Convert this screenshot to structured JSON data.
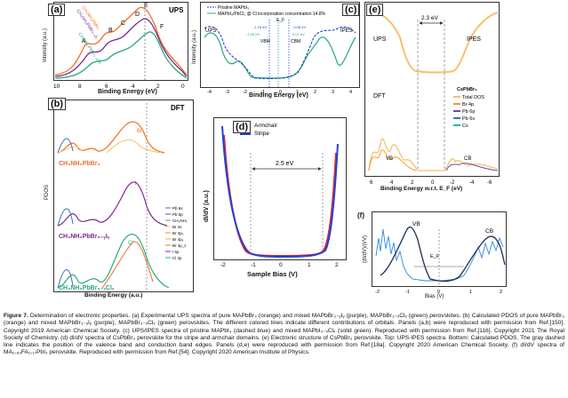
{
  "panel_a": {
    "label": "(a)",
    "tag": "UPS",
    "ylabel": "Intensity (a.u.)",
    "xlabel": "Binding Energy (eV)",
    "xticks": [
      "10",
      "8",
      "6",
      "4",
      "2",
      "0"
    ],
    "peaks": [
      "A",
      "B",
      "C",
      "D",
      "E",
      "F"
    ],
    "series": [
      {
        "name": "CH₃NH₃PbBr₃",
        "color": "#f26d21"
      },
      {
        "name": "CH₃NH₃PbBr₃₋ᵧIᵧ",
        "color": "#7a2a8f"
      },
      {
        "name": "CH₃NH₃PbBr₃₋ₓClₓ",
        "color": "#2aa879"
      }
    ]
  },
  "panel_b": {
    "label": "(b)",
    "tag": "DFT",
    "ylabel": "PDOS",
    "xlabel": "Binding Energy (a.u.)",
    "series_labels": [
      "CH₃NH₃PbBr₃",
      "CH₃NH₃PbBr₃₋ᵧIᵧ",
      "CH₃NH₃PbBr₃₋ₓClₓ"
    ],
    "legend": [
      "Pb 6s",
      "Pb 6p",
      "CH₃NH₃",
      "Br 4s",
      "Br 4pₓ",
      "Br 4pᵧ",
      "Br 4p_z",
      "I 5p",
      "Cl 3p"
    ],
    "annotations": [
      "Br",
      "I",
      "Cl"
    ]
  },
  "panel_c": {
    "label": "(c)",
    "xlabel": "Binding Energy (eV)",
    "ylabel": "Intensity (a.u.)",
    "legend": [
      "Pristine MAPbI₃",
      "MAPbI₃/PbCl₂ @ Cl incorporation concentration 14.8%"
    ],
    "tags": [
      "UPS",
      "IPES",
      "VBM",
      "CBM",
      "E_F"
    ],
    "values": [
      "-1.16 eV",
      "-1.55 eV",
      "-0.08 eV",
      "0.07 eV"
    ],
    "xticks": [
      "-4",
      "-3",
      "-2",
      "-1",
      "0",
      "1",
      "2",
      "3",
      "4"
    ]
  },
  "panel_d": {
    "label": "(d)",
    "xlabel": "Sample Bias (V)",
    "ylabel": "dI/dV (a.u.)",
    "legend": [
      {
        "name": "Armchair",
        "color": "#e3262b"
      },
      {
        "name": "Stripe",
        "color": "#2342d8"
      }
    ],
    "gap_label": "2.5 eV",
    "xticks": [
      "-2",
      "-1",
      "0",
      "1",
      "2"
    ]
  },
  "panel_e": {
    "label": "(e)",
    "gap_label": "2.3 eV",
    "tags": [
      "UPS",
      "IPES",
      "DFT",
      "VB",
      "CB"
    ],
    "legend_title": "CsPbBr₃",
    "legend": [
      {
        "name": "Total DOS",
        "color": "#f3c36b"
      },
      {
        "name": "Br 4p",
        "color": "#f29b2e"
      },
      {
        "name": "Pb 6p",
        "color": "#6c4aa0"
      },
      {
        "name": "Pb 6s",
        "color": "#3d6fb8"
      },
      {
        "name": "Cs",
        "color": "#2db3a3"
      }
    ],
    "xlabel": "Binding Energy w.r.t. E_F (eV)",
    "xticks": [
      "6",
      "4",
      "2",
      "0",
      "-2",
      "-4",
      "-6"
    ]
  },
  "panel_f": {
    "label": "(f)",
    "ylabel": "(dI/dV)/(I/V)",
    "xlabel": "Bias (V)",
    "tags": [
      "VB",
      "CB",
      "E_F"
    ],
    "xticks": [
      "-2",
      "-1",
      "0",
      "1",
      "2"
    ]
  },
  "caption": {
    "bold": "Figure 7.",
    "text": "Determination of electronic properties. (a) Experimental UPS spectra of pure MAPbBr₃ (orange) and mixed MAPbBr₃₋ᵧIᵧ (purple), MAPbBr₃₋ₓClₓ (green) perovskites. (b) Calculated PDOS of pure MAPbBr₃ (orange) and mixed MAPbBr₃₋ᵧIᵧ (purple), MAPbBr₃₋ₓClₓ (green) perovskites. The different colored lines indicate different contributions of orbitals. Panels (a,b) were reproduced with permission from Ref.[150]. Copyright 2019 American Chemical Society. (c) UPS/IPES spectra of pristine MAPbI₃ (dashed blue) and mixed MAPbI₃₋ₓClₓ (solid green). Reproduced with permission from Ref.[116]. Copyright 2021 The Royal Society of Chemistry. (d) dI/dV spectra of CsPbBr₃ perovskite for the stripe and armchair domains. (e) Electronic structure of CsPbBr₃ perovskite. Top: UPS-IPES spectra. Bottom: Calculated PDOS. The gray dashed line indicates the position of the valence band and conduction band edges. Panels (d,e) were reproduced with permission from Ref.[18a]. Copyright 2020 American Chemical Society. (f) dI/dV spectra of MA₀.₈₃FA₀.₁₇PbI₃ perovskite. Reproduced with permission from Ref.[54]. Copyright 2020 American Institute of Physics."
  }
}
